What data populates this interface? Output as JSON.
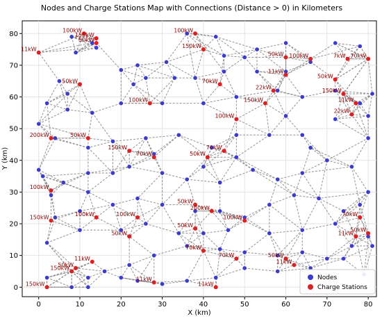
{
  "chart_data": {
    "type": "scatter",
    "title": "Nodes and Charge Stations Map with Connections (Distance > 0) in Kilometers",
    "xlabel": "X (km)",
    "ylabel": "Y (km)",
    "xlim": [
      -4,
      82
    ],
    "ylim": [
      -3,
      84
    ],
    "x_ticks": [
      0,
      10,
      20,
      30,
      40,
      50,
      60,
      70,
      80
    ],
    "y_ticks": [
      0,
      10,
      20,
      30,
      40,
      50,
      60,
      70,
      80
    ],
    "grid": true,
    "legend_position": "lower-right",
    "series": [
      {
        "name": "Nodes",
        "color": "#3b3bd1",
        "points": [
          [
            8,
            79
          ],
          [
            13,
            77
          ],
          [
            14,
            75.5
          ],
          [
            9,
            74
          ],
          [
            20,
            68.5
          ],
          [
            24,
            70
          ],
          [
            31,
            71
          ],
          [
            36,
            80
          ],
          [
            43,
            79
          ],
          [
            45,
            73
          ],
          [
            50,
            72.5
          ],
          [
            53,
            75
          ],
          [
            60,
            77
          ],
          [
            66,
            71
          ],
          [
            72,
            77
          ],
          [
            78,
            76
          ],
          [
            80,
            72
          ],
          [
            81,
            61
          ],
          [
            60,
            68
          ],
          [
            53,
            68
          ],
          [
            45,
            68
          ],
          [
            38,
            66
          ],
          [
            33,
            66
          ],
          [
            26,
            66
          ],
          [
            23,
            64
          ],
          [
            5,
            65
          ],
          [
            7,
            61
          ],
          [
            2,
            58
          ],
          [
            0,
            51.5
          ],
          [
            7,
            56
          ],
          [
            13,
            55
          ],
          [
            20,
            58
          ],
          [
            30,
            58
          ],
          [
            40,
            58
          ],
          [
            48,
            60
          ],
          [
            58,
            62
          ],
          [
            64,
            60
          ],
          [
            72,
            62
          ],
          [
            78,
            58
          ],
          [
            80,
            54
          ],
          [
            80,
            47
          ],
          [
            72,
            53
          ],
          [
            64,
            48
          ],
          [
            56,
            48
          ],
          [
            48,
            48
          ],
          [
            42,
            44
          ],
          [
            34,
            48
          ],
          [
            26,
            47
          ],
          [
            18,
            46
          ],
          [
            12,
            44
          ],
          [
            4,
            47
          ],
          [
            0,
            37
          ],
          [
            1,
            35
          ],
          [
            3,
            29
          ],
          [
            6,
            33
          ],
          [
            12,
            36
          ],
          [
            18,
            36
          ],
          [
            22,
            38
          ],
          [
            30,
            36
          ],
          [
            36,
            34
          ],
          [
            40,
            38
          ],
          [
            44,
            33
          ],
          [
            52,
            37
          ],
          [
            58,
            34
          ],
          [
            64,
            36
          ],
          [
            70,
            40
          ],
          [
            76,
            38
          ],
          [
            80,
            30
          ],
          [
            78,
            26
          ],
          [
            74,
            24
          ],
          [
            68,
            28
          ],
          [
            62,
            29
          ],
          [
            56,
            26
          ],
          [
            50,
            22
          ],
          [
            44,
            24
          ],
          [
            38,
            24
          ],
          [
            30,
            26
          ],
          [
            24,
            28
          ],
          [
            18,
            26
          ],
          [
            10,
            24
          ],
          [
            4,
            22
          ],
          [
            2,
            14
          ],
          [
            10,
            18
          ],
          [
            20,
            18
          ],
          [
            26,
            20
          ],
          [
            34,
            17
          ],
          [
            40,
            17
          ],
          [
            46,
            18
          ],
          [
            56,
            17
          ],
          [
            64,
            18
          ],
          [
            72,
            20
          ],
          [
            80,
            16
          ],
          [
            81,
            13
          ],
          [
            76,
            13
          ],
          [
            70,
            9
          ],
          [
            64,
            11
          ],
          [
            58,
            10
          ],
          [
            50,
            11
          ],
          [
            44,
            12
          ],
          [
            36,
            13
          ],
          [
            28,
            10
          ],
          [
            22,
            7
          ],
          [
            16,
            5
          ],
          [
            12,
            3
          ],
          [
            8,
            5
          ],
          [
            2,
            3
          ],
          [
            2,
            0
          ],
          [
            8,
            0
          ],
          [
            12,
            0
          ],
          [
            30,
            1
          ],
          [
            43,
            3
          ],
          [
            50,
            6
          ],
          [
            58,
            5
          ],
          [
            66,
            6
          ],
          [
            74,
            9
          ],
          [
            79,
            4
          ],
          [
            24,
            2
          ],
          [
            20,
            3
          ],
          [
            36,
            2
          ],
          [
            60,
            54
          ],
          [
            28,
            42
          ],
          [
            48,
            41
          ],
          [
            12,
            30
          ],
          [
            66,
            44
          ]
        ]
      },
      {
        "name": "Charge Stations",
        "color": "#e02020",
        "points": [
          [
            0,
            74
          ],
          [
            11,
            80
          ],
          [
            14,
            78.5
          ],
          [
            14,
            77
          ],
          [
            38,
            80
          ],
          [
            40,
            75
          ],
          [
            60,
            72.5
          ],
          [
            66,
            72
          ],
          [
            75,
            72
          ],
          [
            80,
            72
          ],
          [
            10,
            64
          ],
          [
            27,
            58
          ],
          [
            48,
            53
          ],
          [
            44,
            64
          ],
          [
            55,
            58
          ],
          [
            57,
            62
          ],
          [
            60,
            67
          ],
          [
            72,
            65.5
          ],
          [
            74,
            61
          ],
          [
            77,
            58
          ],
          [
            76,
            54.5
          ],
          [
            3,
            47
          ],
          [
            12,
            47
          ],
          [
            22,
            43
          ],
          [
            28,
            41
          ],
          [
            41,
            41
          ],
          [
            45,
            43
          ],
          [
            3,
            30.5
          ],
          [
            3,
            21
          ],
          [
            14,
            22
          ],
          [
            24,
            22
          ],
          [
            38,
            26
          ],
          [
            50,
            21
          ],
          [
            42,
            24
          ],
          [
            38,
            18.5
          ],
          [
            22,
            16
          ],
          [
            78,
            22
          ],
          [
            80,
            17
          ],
          [
            77,
            16
          ],
          [
            48,
            9
          ],
          [
            40,
            11.5
          ],
          [
            62,
            7
          ],
          [
            60,
            9
          ],
          [
            13,
            8
          ],
          [
            9,
            6
          ],
          [
            8,
            5
          ],
          [
            2,
            0
          ],
          [
            28,
            1.5
          ],
          [
            43,
            0
          ]
        ],
        "labels": [
          "11kW",
          "100kW",
          "150kW",
          "50kW",
          "100kW",
          "150kW",
          "50kW",
          "100kW",
          "7kW",
          "70kW",
          "50kW",
          "100kW",
          "100kW",
          "70kW",
          "150kW",
          "22kW",
          "11kW",
          "50kW",
          "150kW",
          "11kW",
          "22kW",
          "200kW",
          "50kW",
          "150kW",
          "70kW",
          "50kW",
          "70kW",
          "100kW",
          "150kW",
          "100kW",
          "100kW",
          "50kW",
          "100kW",
          "200kW",
          "50kW",
          "50kW",
          "70kW",
          "50kW",
          "11kW",
          "70kW",
          "70kW",
          "11kW",
          "50kW",
          "11kW",
          "50kW",
          "150kW",
          "150kW",
          "11kW",
          "11kW"
        ]
      }
    ]
  }
}
